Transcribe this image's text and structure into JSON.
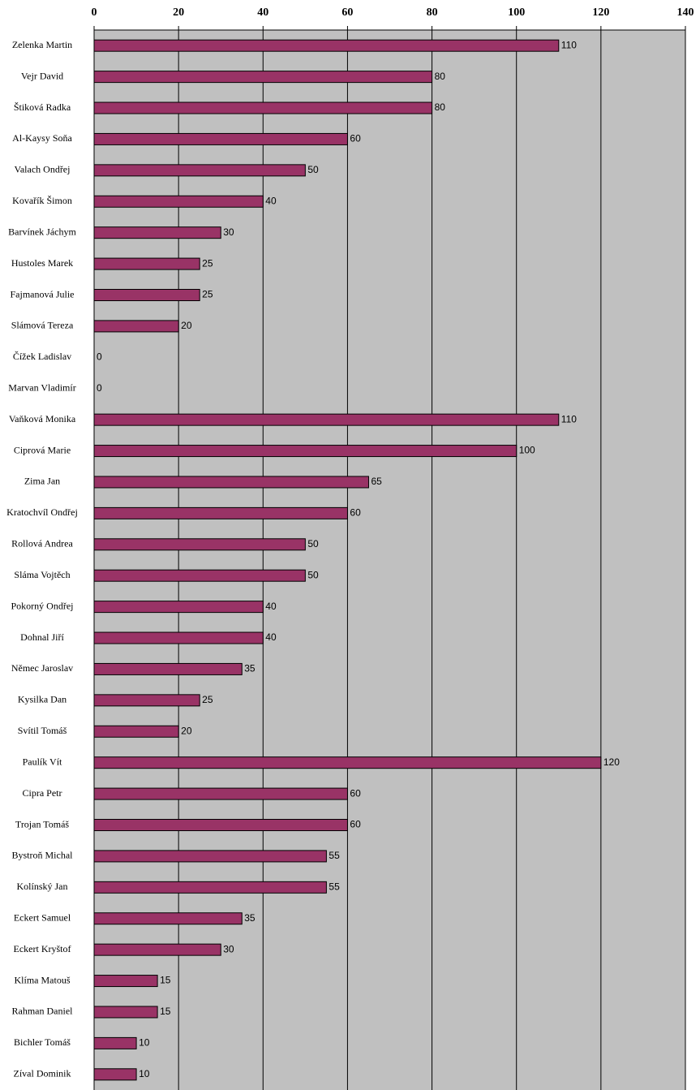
{
  "chart_data": {
    "type": "bar",
    "orientation": "horizontal",
    "categories": [
      "Zelenka Martin",
      "Vejr David",
      "Štiková Radka",
      "Al-Kaysy Soňa",
      "Valach Ondřej",
      "Kovařík Šimon",
      "Barvínek Jáchym",
      "Hustoles Marek",
      "Fajmanová Julie",
      "Slámová Tereza",
      "Čížek Ladislav",
      "Marvan Vladimír",
      "Vaňková Monika",
      "Ciprová Marie",
      "Zima Jan",
      "Kratochvíl Ondřej",
      "Rollová Andrea",
      "Sláma Vojtěch",
      "Pokorný Ondřej",
      "Dohnal Jiří",
      "Němec Jaroslav",
      "Kysilka Dan",
      "Svítil Tomáš",
      "Paulík Vít",
      "Cipra Petr",
      "Trojan Tomáš",
      "Bystroň Michal",
      "Kolínský Jan",
      "Eckert Samuel",
      "Eckert Kryštof",
      "Klíma Matouš",
      "Rahman Daniel",
      "Bichler Tomáš",
      "Zíval Dominik"
    ],
    "values": [
      110,
      80,
      80,
      60,
      50,
      40,
      30,
      25,
      25,
      20,
      0,
      0,
      110,
      100,
      65,
      60,
      50,
      50,
      40,
      40,
      35,
      25,
      20,
      120,
      60,
      60,
      55,
      55,
      35,
      30,
      15,
      15,
      10,
      10
    ],
    "color": "#993366",
    "xlim": [
      0,
      140
    ],
    "xticks": [
      0,
      20,
      40,
      60,
      80,
      100,
      120,
      140
    ],
    "grid": true
  }
}
